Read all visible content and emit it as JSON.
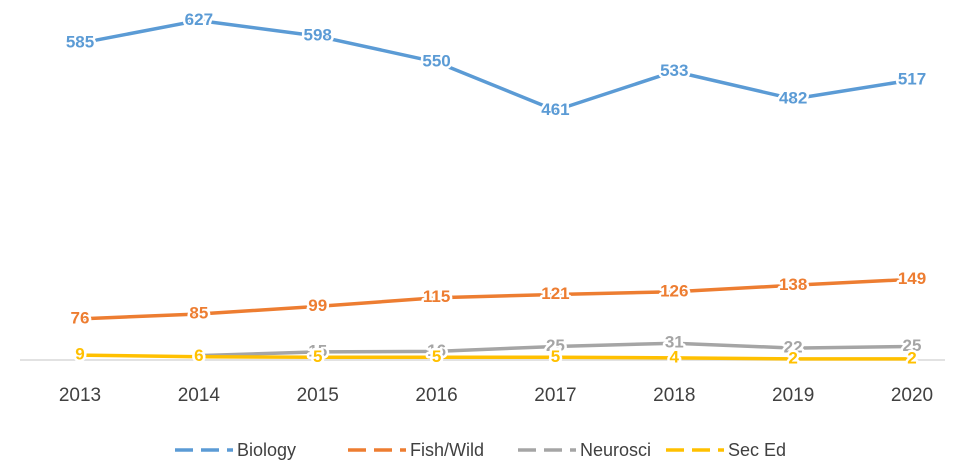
{
  "chart_data": {
    "type": "line",
    "categories": [
      "2013",
      "2014",
      "2015",
      "2016",
      "2017",
      "2018",
      "2019",
      "2020"
    ],
    "series": [
      {
        "name": "Biology",
        "color": "#5b9bd5",
        "values": [
          585,
          627,
          598,
          550,
          461,
          533,
          482,
          517
        ]
      },
      {
        "name": "Fish/Wild",
        "color": "#ed7d31",
        "values": [
          76,
          85,
          99,
          115,
          121,
          126,
          138,
          149
        ]
      },
      {
        "name": "Neurosci",
        "color": "#a5a5a5",
        "values": [
          null,
          8,
          15,
          16,
          25,
          31,
          22,
          25
        ]
      },
      {
        "name": "Sec Ed",
        "color": "#ffc000",
        "values": [
          9,
          6,
          5,
          5,
          5,
          4,
          2,
          2
        ]
      }
    ],
    "ylim": [
      0,
      650
    ],
    "legend": "bottom"
  }
}
